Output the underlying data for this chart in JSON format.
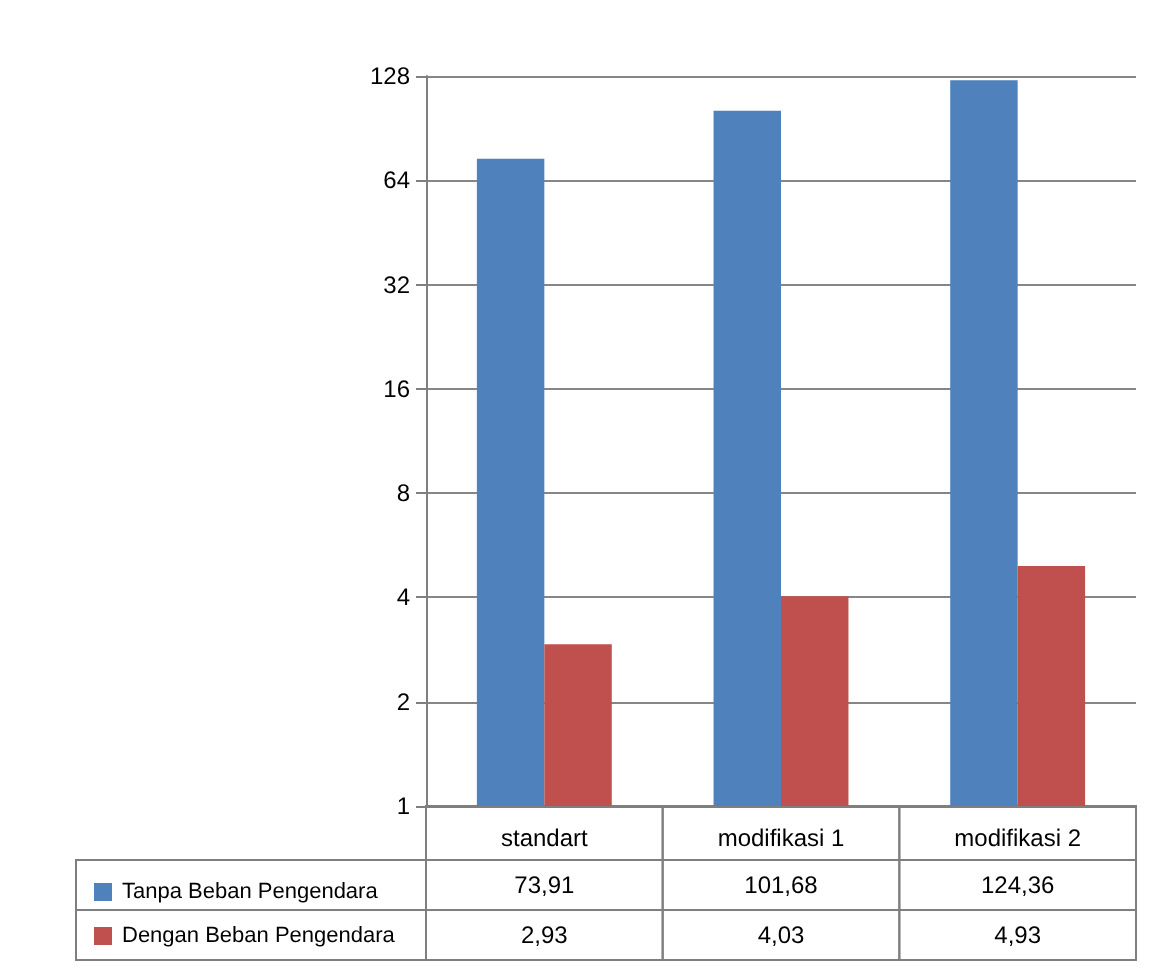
{
  "chart_data": {
    "type": "bar",
    "categories": [
      "standart",
      "modifikasi 1",
      "modifikasi 2"
    ],
    "series": [
      {
        "name": "Tanpa Beban Pengendara",
        "color": "#4f81bd",
        "values": [
          73.91,
          101.68,
          124.36
        ],
        "value_labels": [
          "73,91",
          "101,68",
          "124,36"
        ]
      },
      {
        "name": "Dengan Beban Pengendara",
        "color": "#c0504d",
        "values": [
          2.93,
          4.03,
          4.93
        ],
        "value_labels": [
          "2,93",
          "4,03",
          "4,93"
        ]
      }
    ],
    "log": true,
    "ylim": [
      1,
      128
    ],
    "yticks": [
      1,
      2,
      4,
      8,
      16,
      32,
      64,
      128
    ],
    "grid": "y",
    "legend": "bottom left"
  }
}
